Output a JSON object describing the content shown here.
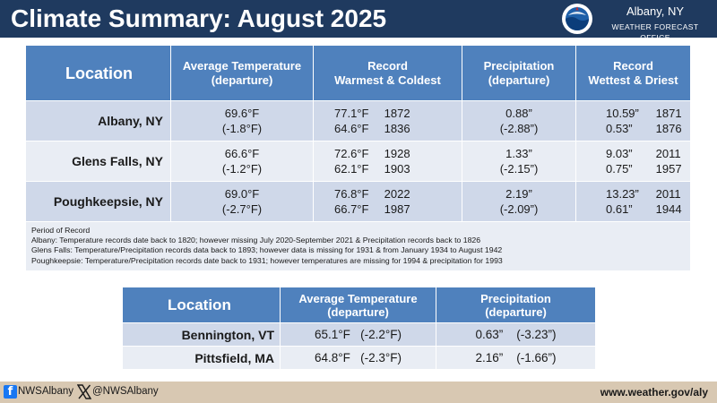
{
  "header": {
    "title": "Climate Summary: August 2025",
    "office_city": "Albany, NY",
    "office_name": "WEATHER FORECAST OFFICE",
    "background": "#1f3a5f"
  },
  "table1": {
    "headers": {
      "location": "Location",
      "avg_temp": [
        "Average Temperature",
        "(departure)"
      ],
      "record_temp": [
        "Record",
        "Warmest & Coldest"
      ],
      "precip": [
        "Precipitation",
        "(departure)"
      ],
      "record_precip": [
        "Record",
        "Wettest & Driest"
      ]
    },
    "rows": [
      {
        "location": "Albany, NY",
        "avg_temp": "69.6°F",
        "avg_temp_dep": "(-1.8°F)",
        "warmest_val": "77.1°F",
        "warmest_year": "1872",
        "coldest_val": "64.6°F",
        "coldest_year": "1836",
        "precip": "0.88”",
        "precip_dep": "(-2.88”)",
        "wettest_val": "10.59”",
        "wettest_year": "1871",
        "driest_val": "0.53”",
        "driest_year": "1876"
      },
      {
        "location": "Glens Falls, NY",
        "avg_temp": "66.6°F",
        "avg_temp_dep": "(-1.2°F)",
        "warmest_val": "72.6°F",
        "warmest_year": "1928",
        "coldest_val": "62.1°F",
        "coldest_year": "1903",
        "precip": "1.33”",
        "precip_dep": "(-2.15”)",
        "wettest_val": "9.03”",
        "wettest_year": "2011",
        "driest_val": "0.75”",
        "driest_year": "1957"
      },
      {
        "location": "Poughkeepsie, NY",
        "avg_temp": "69.0°F",
        "avg_temp_dep": "(-2.7°F)",
        "warmest_val": "76.8°F",
        "warmest_year": "2022",
        "coldest_val": "66.7°F",
        "coldest_year": "1987",
        "precip": "2.19”",
        "precip_dep": "(-2.09”)",
        "wettest_val": "13.23”",
        "wettest_year": "2011",
        "driest_val": "0.61”",
        "driest_year": "1944"
      }
    ],
    "notes": [
      "Period of Record",
      "Albany: Temperature records date back to 1820; however missing July 2020-September 2021 & Precipitation records back to 1826",
      "Glens Falls: Temperature/Precipitation records data back to 1893; however data is missing for 1931 & from January 1934 to August 1942",
      "Poughkeepsie: Temperature/Precipitation records date back to 1931; however temperatures are missing for 1994 & precipitation for 1993"
    ]
  },
  "table2": {
    "headers": {
      "location": "Location",
      "avg_temp": [
        "Average Temperature",
        "(departure)"
      ],
      "precip": [
        "Precipitation",
        "(departure)"
      ]
    },
    "rows": [
      {
        "location": "Bennington, VT",
        "avg_temp": "65.1°F",
        "avg_temp_dep": "(-2.2°F)",
        "precip": "0.63”",
        "precip_dep": "(-3.23”)"
      },
      {
        "location": "Pittsfield, MA",
        "avg_temp": "64.8°F",
        "avg_temp_dep": "(-2.3°F)",
        "precip": "2.16”",
        "precip_dep": "(-1.66”)"
      }
    ]
  },
  "footer": {
    "facebook_icon": "facebook-icon",
    "facebook": "NWSAlbany",
    "x_icon": "x-icon",
    "x_handle": "@NWSAlbany",
    "url": "www.weather.gov/aly"
  },
  "colors": {
    "header_fill": "#4f81bd",
    "row_dark": "#cfd8e9",
    "row_light": "#e9edf4",
    "footer": "#d8c8b2"
  }
}
